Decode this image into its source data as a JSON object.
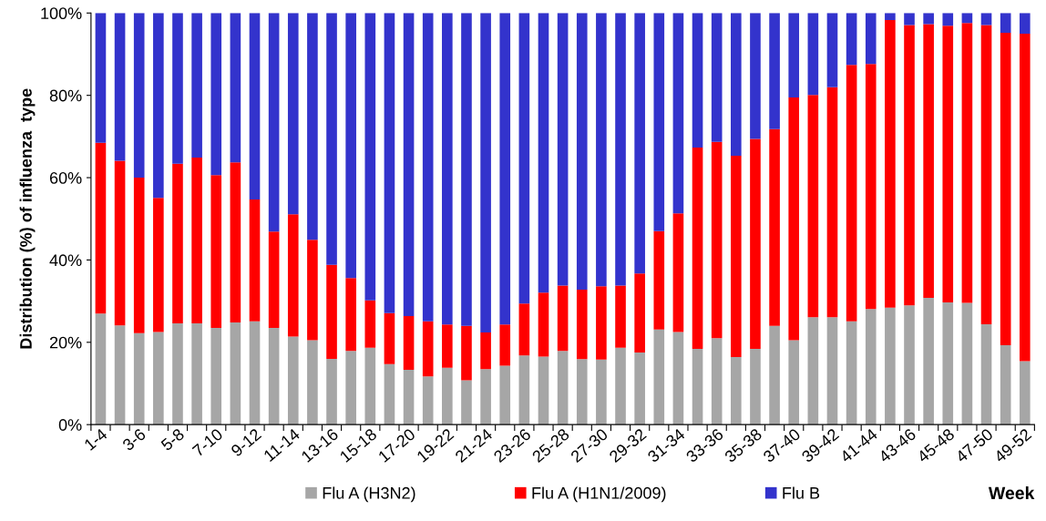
{
  "chart_data": {
    "type": "bar",
    "stacked": true,
    "xlabel": "Week",
    "ylabel": "Distribution (%) of influenza  type",
    "categories": [
      "1-4",
      null,
      "3-6",
      null,
      "5-8",
      null,
      "7-10",
      null,
      "9-12",
      null,
      "11-14",
      null,
      "13-16",
      null,
      "15-18",
      null,
      "17-20",
      null,
      "19-22",
      null,
      "21-24",
      null,
      "23-26",
      null,
      "25-28",
      null,
      "27-30",
      null,
      "29-32",
      null,
      "31-34",
      null,
      "33-36",
      null,
      "35-38",
      null,
      "37-40",
      null,
      "39-42",
      null,
      "41-44",
      null,
      "43-46",
      null,
      "45-48",
      null,
      "47-50",
      null,
      "49-52"
    ],
    "series": [
      {
        "name": "Flu A (H3N2)",
        "color": "#a6a6a6",
        "values": [
          27.0,
          24.1,
          22.2,
          22.5,
          24.6,
          24.6,
          23.5,
          24.8,
          25.1,
          23.5,
          21.4,
          20.5,
          16.0,
          17.9,
          18.7,
          14.7,
          13.3,
          11.7,
          13.8,
          10.8,
          13.5,
          14.3,
          16.8,
          16.5,
          17.9,
          15.9,
          15.8,
          18.7,
          17.5,
          23.1,
          22.5,
          18.4,
          21.0,
          16.4,
          18.4,
          24.0,
          20.5,
          26.1,
          26.1,
          25.1,
          28.1,
          28.4,
          29.0,
          30.8,
          29.7,
          29.6,
          24.4,
          19.3,
          15.4
        ]
      },
      {
        "name": "Flu A (H1N1/2009)",
        "color": "#ff0000",
        "values": [
          41.5,
          40.0,
          37.8,
          32.6,
          38.8,
          40.3,
          37.1,
          38.9,
          29.6,
          23.4,
          29.7,
          24.4,
          22.8,
          17.7,
          11.5,
          12.4,
          13.1,
          13.4,
          10.5,
          13.2,
          8.9,
          10.0,
          12.6,
          15.6,
          15.9,
          16.9,
          17.8,
          15.1,
          19.2,
          23.9,
          28.8,
          48.9,
          47.7,
          48.9,
          51.0,
          47.8,
          59.0,
          54.0,
          55.9,
          62.3,
          59.5,
          69.9,
          68.1,
          66.5,
          67.2,
          68.0,
          72.7,
          75.9,
          79.6
        ]
      },
      {
        "name": "Flu B",
        "color": "#3333cc",
        "values": [
          31.5,
          35.9,
          40.0,
          44.9,
          36.6,
          35.1,
          39.4,
          36.3,
          45.3,
          53.1,
          48.9,
          55.1,
          61.2,
          64.4,
          69.8,
          72.9,
          73.6,
          74.9,
          75.7,
          76.0,
          77.6,
          75.7,
          70.6,
          67.9,
          66.2,
          67.2,
          66.4,
          66.2,
          63.3,
          53.0,
          48.7,
          32.7,
          31.3,
          34.7,
          30.6,
          28.2,
          20.5,
          19.9,
          18.0,
          12.6,
          12.4,
          1.7,
          2.9,
          2.7,
          3.1,
          2.4,
          2.9,
          4.8,
          5.0
        ]
      }
    ],
    "ylim": [
      0,
      100
    ],
    "yticks": [
      {
        "value": 0,
        "label": "0%"
      },
      {
        "value": 20,
        "label": "20%"
      },
      {
        "value": 40,
        "label": "40%"
      },
      {
        "value": 60,
        "label": "60%"
      },
      {
        "value": 80,
        "label": "80%"
      },
      {
        "value": 100,
        "label": "100%"
      }
    ],
    "grid": false,
    "legend": "bottom"
  }
}
